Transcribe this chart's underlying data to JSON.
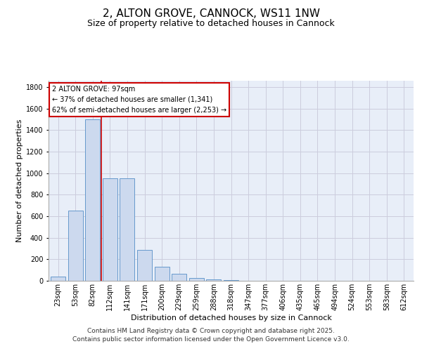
{
  "title": "2, ALTON GROVE, CANNOCK, WS11 1NW",
  "subtitle": "Size of property relative to detached houses in Cannock",
  "xlabel": "Distribution of detached houses by size in Cannock",
  "ylabel": "Number of detached properties",
  "categories": [
    "23sqm",
    "53sqm",
    "82sqm",
    "112sqm",
    "141sqm",
    "171sqm",
    "200sqm",
    "229sqm",
    "259sqm",
    "288sqm",
    "318sqm",
    "347sqm",
    "377sqm",
    "406sqm",
    "435sqm",
    "465sqm",
    "494sqm",
    "524sqm",
    "553sqm",
    "583sqm",
    "612sqm"
  ],
  "values": [
    40,
    650,
    1500,
    950,
    950,
    290,
    130,
    65,
    25,
    10,
    5,
    2,
    1,
    1,
    0,
    0,
    0,
    0,
    0,
    0,
    0
  ],
  "bar_color": "#ccd9ee",
  "bar_edge_color": "#6699cc",
  "grid_color": "#ccccdd",
  "background_color": "#e8eef8",
  "annotation_box_text": "2 ALTON GROVE: 97sqm\n← 37% of detached houses are smaller (1,341)\n62% of semi-detached houses are larger (2,253) →",
  "vline_color": "#cc0000",
  "vline_x": 2.48,
  "ylim": [
    0,
    1860
  ],
  "yticks": [
    0,
    200,
    400,
    600,
    800,
    1000,
    1200,
    1400,
    1600,
    1800
  ],
  "footer_line1": "Contains HM Land Registry data © Crown copyright and database right 2025.",
  "footer_line2": "Contains public sector information licensed under the Open Government Licence v3.0.",
  "title_fontsize": 11,
  "subtitle_fontsize": 9,
  "axis_label_fontsize": 8,
  "tick_fontsize": 7,
  "annotation_fontsize": 7,
  "footer_fontsize": 6.5,
  "ylabel_fontsize": 8
}
